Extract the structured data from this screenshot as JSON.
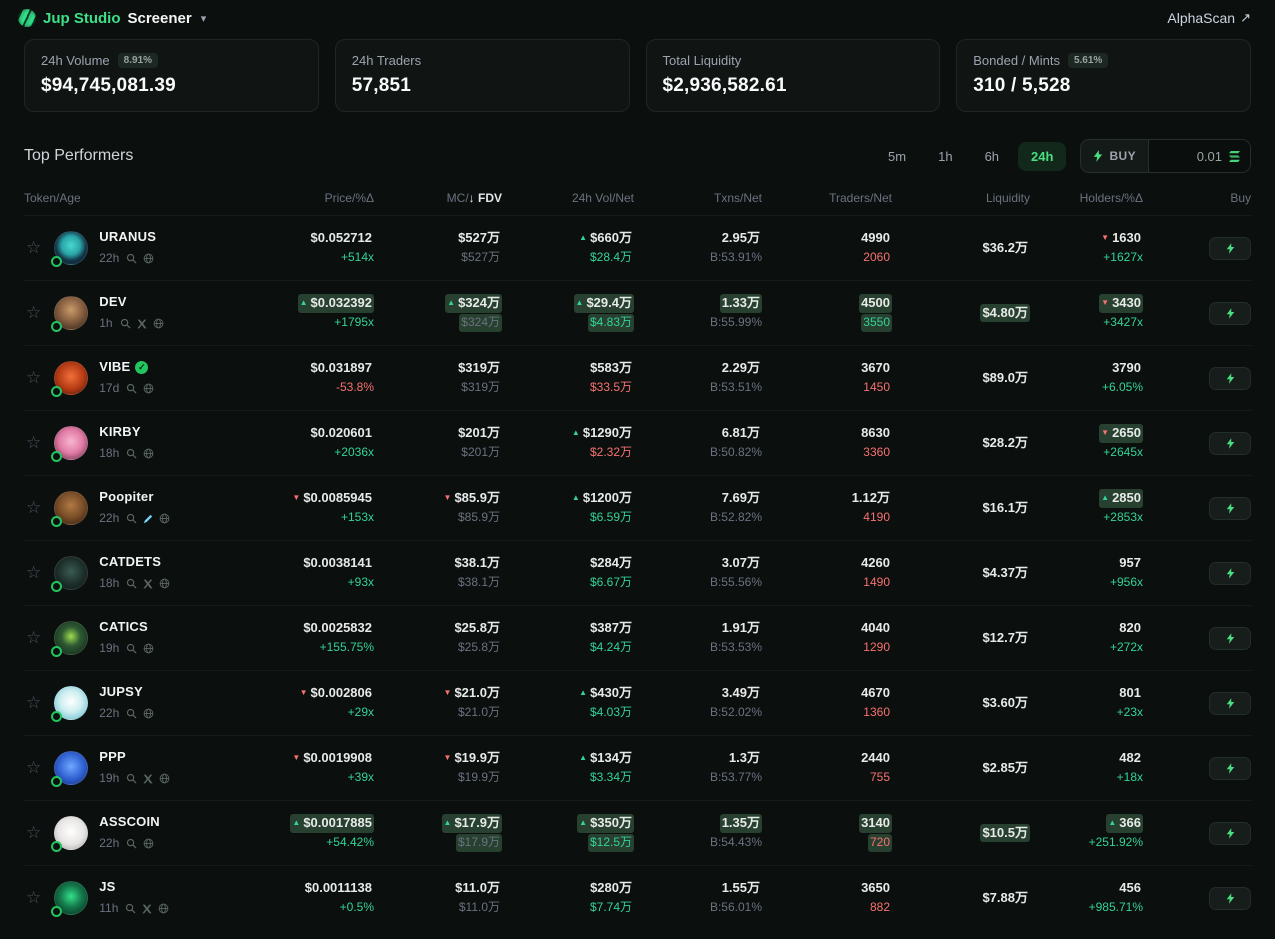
{
  "header": {
    "brand": "Jup Studio",
    "page": "Screener",
    "alpha_scan": "AlphaScan"
  },
  "colors": {
    "accent_green": "#34d399",
    "active_filter_green": "#4ade80",
    "negative_red": "#f87171",
    "flash_highlight": "#27402f",
    "background": "#0b0f0d"
  },
  "stats": [
    {
      "label": "24h Volume",
      "badge": "8.91%",
      "value": "$94,745,081.39"
    },
    {
      "label": "24h Traders",
      "value": "57,851"
    },
    {
      "label": "Total Liquidity",
      "value": "$2,936,582.61"
    },
    {
      "label": "Bonded / Mints",
      "badge": "5.61%",
      "value": "310 / 5,528"
    }
  ],
  "section": {
    "title": "Top Performers",
    "timeframes": [
      "5m",
      "1h",
      "6h",
      "24h"
    ],
    "active_timeframe": "24h"
  },
  "buybar": {
    "label": "BUY",
    "amount": "0.01"
  },
  "table": {
    "col_token": "Token/Age",
    "col_price": "Price/%Δ",
    "col_mc_prefix": "MC/",
    "sort_arrow": "↓",
    "col_mc_sorted": "FDV",
    "col_vol": "24h Vol/Net",
    "col_txns": "Txns/Net",
    "col_traders": "Traders/Net",
    "col_liquidity": "Liquidity",
    "col_holders": "Holders/%Δ",
    "col_buy": "Buy",
    "rows": [
      {
        "symbol": "URANUS",
        "verified": false,
        "age": "22h",
        "icons": [
          "search",
          "globe"
        ],
        "avatar": "radial-gradient(circle at 50% 42%, #49d8cf 0%, #2aa5a8 38%, #123447 62%, #0b1f2e 100%)",
        "price": {
          "value": "$0.052712",
          "dir": "",
          "flash": false,
          "change": "+514x",
          "change_cls": "green"
        },
        "mc": {
          "value": "$527万",
          "dir": "",
          "flash": false,
          "fdv": "$527万",
          "fdv_flash": false
        },
        "vol": {
          "value": "$660万",
          "dir": "up",
          "flash": false,
          "net": "$28.4万",
          "net_cls": "green",
          "net_flash": false
        },
        "txns": {
          "value": "2.95万",
          "flash": false,
          "b": "B:53.91%"
        },
        "traders": {
          "value": "4990",
          "flash": false,
          "net": "2060",
          "net_cls": "red",
          "net_flash": false
        },
        "liq": {
          "value": "$36.2万",
          "flash": false
        },
        "holders": {
          "value": "1630",
          "dir": "down",
          "flash": false,
          "change": "+1627x",
          "change_cls": "green"
        }
      },
      {
        "symbol": "DEV",
        "verified": false,
        "age": "1h",
        "icons": [
          "search",
          "x",
          "globe"
        ],
        "avatar": "radial-gradient(circle at 50% 40%, #c99b6a 0%, #8a6242 45%, #2b1d16 100%)",
        "price": {
          "value": "$0.032392",
          "dir": "up",
          "flash": true,
          "change": "+1795x",
          "change_cls": "green"
        },
        "mc": {
          "value": "$324万",
          "dir": "up",
          "flash": true,
          "fdv": "$324万",
          "fdv_flash": true
        },
        "vol": {
          "value": "$29.4万",
          "dir": "up",
          "flash": true,
          "net": "$4.83万",
          "net_cls": "green",
          "net_flash": true
        },
        "txns": {
          "value": "1.33万",
          "flash": true,
          "b": "B:55.99%"
        },
        "traders": {
          "value": "4500",
          "flash": true,
          "net": "3550",
          "net_cls": "green",
          "net_flash": true
        },
        "liq": {
          "value": "$4.80万",
          "flash": true
        },
        "holders": {
          "value": "3430",
          "dir": "down",
          "flash": true,
          "change": "+3427x",
          "change_cls": "green"
        }
      },
      {
        "symbol": "VIBE",
        "verified": true,
        "age": "17d",
        "icons": [
          "search",
          "globe"
        ],
        "avatar": "radial-gradient(circle at 50% 45%, #f2703a 0%, #b43a14 55%, #3a120a 100%)",
        "price": {
          "value": "$0.031897",
          "dir": "",
          "flash": false,
          "change": "-53.8%",
          "change_cls": "red"
        },
        "mc": {
          "value": "$319万",
          "dir": "",
          "flash": false,
          "fdv": "$319万",
          "fdv_flash": false
        },
        "vol": {
          "value": "$583万",
          "dir": "",
          "flash": false,
          "net": "$33.5万",
          "net_cls": "red",
          "net_flash": false
        },
        "txns": {
          "value": "2.29万",
          "flash": false,
          "b": "B:53.51%"
        },
        "traders": {
          "value": "3670",
          "flash": false,
          "net": "1450",
          "net_cls": "red",
          "net_flash": false
        },
        "liq": {
          "value": "$89.0万",
          "flash": false
        },
        "holders": {
          "value": "3790",
          "dir": "",
          "flash": false,
          "change": "+6.05%",
          "change_cls": "green"
        }
      },
      {
        "symbol": "KIRBY",
        "verified": false,
        "age": "18h",
        "icons": [
          "search",
          "globe"
        ],
        "avatar": "radial-gradient(circle at 50% 45%, #f7b6cf 0%, #e17ba6 50%, #53283c 100%)",
        "price": {
          "value": "$0.020601",
          "dir": "",
          "flash": false,
          "change": "+2036x",
          "change_cls": "green"
        },
        "mc": {
          "value": "$201万",
          "dir": "",
          "flash": false,
          "fdv": "$201万",
          "fdv_flash": false
        },
        "vol": {
          "value": "$1290万",
          "dir": "up",
          "flash": false,
          "net": "$2.32万",
          "net_cls": "red",
          "net_flash": false
        },
        "txns": {
          "value": "6.81万",
          "flash": false,
          "b": "B:50.82%"
        },
        "traders": {
          "value": "8630",
          "flash": false,
          "net": "3360",
          "net_cls": "red",
          "net_flash": false
        },
        "liq": {
          "value": "$28.2万",
          "flash": false
        },
        "holders": {
          "value": "2650",
          "dir": "down",
          "flash": true,
          "change": "+2645x",
          "change_cls": "green"
        }
      },
      {
        "symbol": "Poopiter",
        "verified": false,
        "age": "22h",
        "icons": [
          "search",
          "pencil",
          "globe"
        ],
        "avatar": "radial-gradient(circle at 50% 42%, #b07a44 0%, #7a4e28 50%, #2a1a0e 100%)",
        "price": {
          "value": "$0.0085945",
          "dir": "down",
          "flash": false,
          "change": "+153x",
          "change_cls": "green"
        },
        "mc": {
          "value": "$85.9万",
          "dir": "down",
          "flash": false,
          "fdv": "$85.9万",
          "fdv_flash": false
        },
        "vol": {
          "value": "$1200万",
          "dir": "up",
          "flash": false,
          "net": "$6.59万",
          "net_cls": "green",
          "net_flash": false
        },
        "txns": {
          "value": "7.69万",
          "flash": false,
          "b": "B:52.82%"
        },
        "traders": {
          "value": "1.12万",
          "flash": false,
          "net": "4190",
          "net_cls": "red",
          "net_flash": false
        },
        "liq": {
          "value": "$16.1万",
          "flash": false
        },
        "holders": {
          "value": "2850",
          "dir": "up",
          "flash": true,
          "change": "+2853x",
          "change_cls": "green"
        }
      },
      {
        "symbol": "CATDETS",
        "verified": false,
        "age": "18h",
        "icons": [
          "search",
          "x",
          "globe"
        ],
        "avatar": "radial-gradient(circle at 50% 45%, #3b5a52 0%, #1c2e2a 55%, #0c1513 100%)",
        "price": {
          "value": "$0.0038141",
          "dir": "",
          "flash": false,
          "change": "+93x",
          "change_cls": "green"
        },
        "mc": {
          "value": "$38.1万",
          "dir": "",
          "flash": false,
          "fdv": "$38.1万",
          "fdv_flash": false
        },
        "vol": {
          "value": "$284万",
          "dir": "",
          "flash": false,
          "net": "$6.67万",
          "net_cls": "green",
          "net_flash": false
        },
        "txns": {
          "value": "3.07万",
          "flash": false,
          "b": "B:55.56%"
        },
        "traders": {
          "value": "4260",
          "flash": false,
          "net": "1490",
          "net_cls": "red",
          "net_flash": false
        },
        "liq": {
          "value": "$4.37万",
          "flash": false
        },
        "holders": {
          "value": "957",
          "dir": "",
          "flash": false,
          "change": "+956x",
          "change_cls": "green"
        }
      },
      {
        "symbol": "CATICS",
        "verified": false,
        "age": "19h",
        "icons": [
          "search",
          "globe"
        ],
        "avatar": "radial-gradient(circle at 50% 45%, #9fdc4e 0%, #2e5a34 40%, #0e1f14 100%)",
        "price": {
          "value": "$0.0025832",
          "dir": "",
          "flash": false,
          "change": "+155.75%",
          "change_cls": "green"
        },
        "mc": {
          "value": "$25.8万",
          "dir": "",
          "flash": false,
          "fdv": "$25.8万",
          "fdv_flash": false
        },
        "vol": {
          "value": "$387万",
          "dir": "",
          "flash": false,
          "net": "$4.24万",
          "net_cls": "green",
          "net_flash": false
        },
        "txns": {
          "value": "1.91万",
          "flash": false,
          "b": "B:53.53%"
        },
        "traders": {
          "value": "4040",
          "flash": false,
          "net": "1290",
          "net_cls": "red",
          "net_flash": false
        },
        "liq": {
          "value": "$12.7万",
          "flash": false
        },
        "holders": {
          "value": "820",
          "dir": "",
          "flash": false,
          "change": "+272x",
          "change_cls": "green"
        }
      },
      {
        "symbol": "JUPSY",
        "verified": false,
        "age": "22h",
        "icons": [
          "search",
          "globe"
        ],
        "avatar": "radial-gradient(circle at 50% 45%, #ffffff 0%, #cdeef0 45%, #58b7c9 100%)",
        "price": {
          "value": "$0.002806",
          "dir": "down",
          "flash": false,
          "change": "+29x",
          "change_cls": "green"
        },
        "mc": {
          "value": "$21.0万",
          "dir": "down",
          "flash": false,
          "fdv": "$21.0万",
          "fdv_flash": false
        },
        "vol": {
          "value": "$430万",
          "dir": "up",
          "flash": false,
          "net": "$4.03万",
          "net_cls": "green",
          "net_flash": false
        },
        "txns": {
          "value": "3.49万",
          "flash": false,
          "b": "B:52.02%"
        },
        "traders": {
          "value": "4670",
          "flash": false,
          "net": "1360",
          "net_cls": "red",
          "net_flash": false
        },
        "liq": {
          "value": "$3.60万",
          "flash": false
        },
        "holders": {
          "value": "801",
          "dir": "",
          "flash": false,
          "change": "+23x",
          "change_cls": "green"
        }
      },
      {
        "symbol": "PPP",
        "verified": false,
        "age": "19h",
        "icons": [
          "search",
          "x",
          "globe"
        ],
        "avatar": "radial-gradient(circle at 50% 45%, #6ea8ff 0%, #2f5fd0 55%, #142a66 100%)",
        "price": {
          "value": "$0.0019908",
          "dir": "down",
          "flash": false,
          "change": "+39x",
          "change_cls": "green"
        },
        "mc": {
          "value": "$19.9万",
          "dir": "down",
          "flash": false,
          "fdv": "$19.9万",
          "fdv_flash": false
        },
        "vol": {
          "value": "$134万",
          "dir": "up",
          "flash": false,
          "net": "$3.34万",
          "net_cls": "green",
          "net_flash": false
        },
        "txns": {
          "value": "1.3万",
          "flash": false,
          "b": "B:53.77%"
        },
        "traders": {
          "value": "2440",
          "flash": false,
          "net": "755",
          "net_cls": "red",
          "net_flash": false
        },
        "liq": {
          "value": "$2.85万",
          "flash": false
        },
        "holders": {
          "value": "482",
          "dir": "",
          "flash": false,
          "change": "+18x",
          "change_cls": "green"
        }
      },
      {
        "symbol": "ASSCOIN",
        "verified": false,
        "age": "22h",
        "icons": [
          "search",
          "globe"
        ],
        "avatar": "radial-gradient(circle at 50% 45%, #ffffff 0%, #e7e5e4 55%, #9e9c99 100%)",
        "price": {
          "value": "$0.0017885",
          "dir": "up",
          "flash": true,
          "change": "+54.42%",
          "change_cls": "green"
        },
        "mc": {
          "value": "$17.9万",
          "dir": "up",
          "flash": true,
          "fdv": "$17.9万",
          "fdv_flash": true
        },
        "vol": {
          "value": "$350万",
          "dir": "up",
          "flash": true,
          "net": "$12.5万",
          "net_cls": "green",
          "net_flash": true
        },
        "txns": {
          "value": "1.35万",
          "flash": true,
          "b": "B:54.43%"
        },
        "traders": {
          "value": "3140",
          "flash": true,
          "net": "720",
          "net_cls": "red",
          "net_flash": true
        },
        "liq": {
          "value": "$10.5万",
          "flash": true
        },
        "holders": {
          "value": "366",
          "dir": "up",
          "flash": true,
          "change": "+251.92%",
          "change_cls": "green"
        }
      },
      {
        "symbol": "JS",
        "verified": false,
        "age": "11h",
        "icons": [
          "search",
          "x",
          "globe"
        ],
        "avatar": "radial-gradient(circle at 50% 45%, #35e08b 0%, #147a4b 45%, #06231a 100%)",
        "price": {
          "value": "$0.0011138",
          "dir": "",
          "flash": false,
          "change": "+0.5%",
          "change_cls": "green"
        },
        "mc": {
          "value": "$11.0万",
          "dir": "",
          "flash": false,
          "fdv": "$11.0万",
          "fdv_flash": false
        },
        "vol": {
          "value": "$280万",
          "dir": "",
          "flash": false,
          "net": "$7.74万",
          "net_cls": "green",
          "net_flash": false
        },
        "txns": {
          "value": "1.55万",
          "flash": false,
          "b": "B:56.01%"
        },
        "traders": {
          "value": "3650",
          "flash": false,
          "net": "882",
          "net_cls": "red",
          "net_flash": false
        },
        "liq": {
          "value": "$7.88万",
          "flash": false
        },
        "holders": {
          "value": "456",
          "dir": "",
          "flash": false,
          "change": "+985.71%",
          "change_cls": "green"
        }
      }
    ]
  }
}
